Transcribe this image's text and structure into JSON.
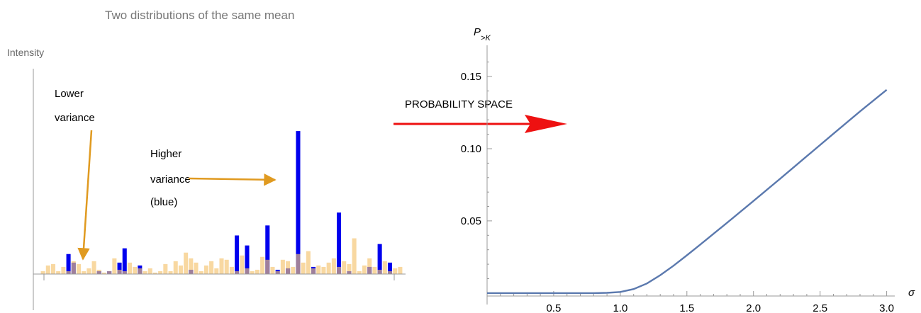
{
  "colors": {
    "high_variance": "#0000ee",
    "low_variance": "#f4c36e",
    "annotation_arrow": "#e09a20",
    "probability_arrow": "#ee1111",
    "curve": "#5b79ae",
    "axis": "#999999"
  },
  "chart_data": [
    {
      "type": "bar",
      "title": "Two distributions of the same mean",
      "ylabel": "Intensity",
      "xlabel": "",
      "grid": false,
      "annotations": {
        "lower": [
          "Lower",
          "variance"
        ],
        "higher": [
          "Higher",
          "variance",
          "(blue)"
        ]
      },
      "ylim": [
        0,
        1.15
      ],
      "series": [
        {
          "name": "blue",
          "values": [
            0,
            0,
            0,
            0,
            0,
            0.14,
            0.08,
            0,
            0,
            0,
            0,
            0.02,
            0,
            0.02,
            0,
            0.08,
            0.18,
            0,
            0,
            0.06,
            0,
            0,
            0,
            0,
            0,
            0,
            0,
            0,
            0,
            0.03,
            0,
            0,
            0,
            0,
            0,
            0,
            0,
            0,
            0.27,
            0,
            0.2,
            0,
            0,
            0,
            0.34,
            0,
            0.03,
            0,
            0.04,
            0,
            1.0,
            0,
            0,
            0.05,
            0,
            0,
            0,
            0,
            0.43,
            0,
            0.02,
            0,
            0,
            0,
            0.05,
            0,
            0.21,
            0,
            0.08,
            0,
            0
          ]
        },
        {
          "name": "orange",
          "values": [
            0.02,
            0.06,
            0.07,
            0.02,
            0.05,
            0.02,
            0.09,
            0.07,
            0.02,
            0.04,
            0.09,
            0.03,
            0.01,
            0.02,
            0.11,
            0.03,
            0.02,
            0.08,
            0.05,
            0.04,
            0.02,
            0.04,
            0.01,
            0.02,
            0.07,
            0.02,
            0.09,
            0.06,
            0.15,
            0.11,
            0.08,
            0.02,
            0.06,
            0.09,
            0.04,
            0.11,
            0.1,
            0.05,
            0.02,
            0.13,
            0.04,
            0.02,
            0.03,
            0.12,
            0.1,
            0.05,
            0.02,
            0.1,
            0.09,
            0.05,
            0.14,
            0.08,
            0.16,
            0.04,
            0.06,
            0.05,
            0.08,
            0.11,
            0.05,
            0.09,
            0.07,
            0.25,
            0.02,
            0.06,
            0.11,
            0.05,
            0.03,
            0.09,
            0.02,
            0.04,
            0.05
          ]
        }
      ]
    },
    {
      "type": "line",
      "xlabel": "σ",
      "ylabel": "P>K",
      "ylabel_main": "P",
      "ylabel_sub": ">K",
      "xlim": [
        0,
        3.05
      ],
      "ylim": [
        -0.002,
        0.175
      ],
      "grid": false,
      "x_ticks": [
        "0.5",
        "1.0",
        "1.5",
        "2.0",
        "2.5",
        "3.0"
      ],
      "y_ticks": [
        "0.05",
        "0.10",
        "0.15"
      ],
      "annotation": "PROBABILITY SPACE",
      "x": [
        0.0,
        0.5,
        0.8,
        0.9,
        1.0,
        1.1,
        1.2,
        1.3,
        1.4,
        1.5,
        1.6,
        1.8,
        2.0,
        2.2,
        2.4,
        2.6,
        2.8,
        3.0
      ],
      "y": [
        0.0,
        0.0,
        0.0,
        0.0002,
        0.0008,
        0.0028,
        0.0067,
        0.0124,
        0.019,
        0.0262,
        0.0336,
        0.0486,
        0.0638,
        0.0792,
        0.0948,
        0.1104,
        0.1258,
        0.1408
      ]
    }
  ]
}
